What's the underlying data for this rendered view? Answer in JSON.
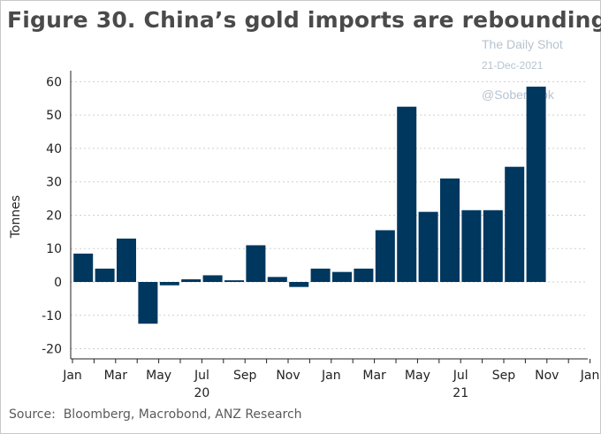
{
  "title": "Figure 30. China’s gold imports are rebounding",
  "watermark": {
    "line1": "The Daily Shot",
    "line2": "21-Dec-2021",
    "line3": "@SoberLook"
  },
  "source": "Source:  Bloomberg, Macrobond, ANZ Research",
  "colors": {
    "bar": "#00375f",
    "grid": "#cfcfcf",
    "axis": "#222222"
  },
  "chart_data": {
    "type": "bar",
    "ylabel": "Tonnes",
    "ylim": [
      -23,
      62
    ],
    "yticks": [
      -20,
      -10,
      0,
      10,
      20,
      30,
      40,
      50,
      60
    ],
    "grid": true,
    "categories": [
      "Jan 2020",
      "Feb 2020",
      "Mar 2020",
      "Apr 2020",
      "May 2020",
      "Jun 2020",
      "Jul 2020",
      "Aug 2020",
      "Sep 2020",
      "Oct 2020",
      "Nov 2020",
      "Dec 2020",
      "Jan 2021",
      "Feb 2021",
      "Mar 2021",
      "Apr 2021",
      "May 2021",
      "Jun 2021",
      "Jul 2021",
      "Aug 2021",
      "Sep 2021",
      "Oct 2021",
      "Nov 2021"
    ],
    "values": [
      8.5,
      4,
      13,
      -12.5,
      -1,
      0.8,
      2,
      0.5,
      11,
      1.5,
      -1.5,
      4,
      3,
      4,
      15.5,
      52.5,
      21,
      31,
      21.5,
      21.5,
      34.5,
      58.5,
      0
    ],
    "xtick_labels": [
      "Jan",
      "Mar",
      "May",
      "Jul",
      "Sep",
      "Nov",
      "Jan",
      "Mar",
      "May",
      "Jul",
      "Sep",
      "Nov",
      "Jan"
    ],
    "year_labels": [
      "20",
      "21"
    ]
  }
}
